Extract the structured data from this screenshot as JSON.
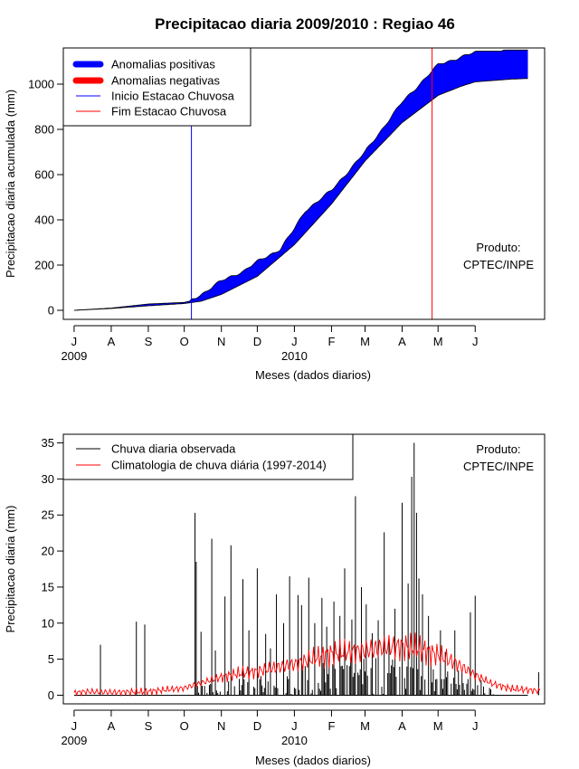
{
  "title": "Precipitacao diaria 2009/2010 : Regiao 46",
  "colors": {
    "positive": "#0000ff",
    "negative": "#ff0000",
    "season_start": "#0000ff",
    "season_end": "#ff0000",
    "observed": "#000000",
    "climatology": "#ff0000"
  },
  "chart_data": [
    {
      "type": "area",
      "name": "accumulated",
      "ylabel": "Precipitacao diaria acumulada (mm)",
      "xlabel": "Meses (dados diarios)",
      "xlim": [
        "2009-06-22",
        "2010-07-29"
      ],
      "ylim": [
        -40,
        1160
      ],
      "yticks": [
        0,
        200,
        400,
        600,
        800,
        1000
      ],
      "month_ticks": [
        {
          "date": "2009-07-01",
          "label": "J"
        },
        {
          "date": "2009-08-01",
          "label": "A"
        },
        {
          "date": "2009-09-01",
          "label": "S"
        },
        {
          "date": "2009-10-01",
          "label": "O"
        },
        {
          "date": "2009-11-01",
          "label": "N"
        },
        {
          "date": "2009-12-01",
          "label": "D"
        },
        {
          "date": "2010-01-01",
          "label": "J"
        },
        {
          "date": "2010-02-01",
          "label": "F"
        },
        {
          "date": "2010-03-01",
          "label": "M"
        },
        {
          "date": "2010-04-01",
          "label": "A"
        },
        {
          "date": "2010-05-01",
          "label": "M"
        },
        {
          "date": "2010-06-01",
          "label": "J"
        }
      ],
      "year_labels": [
        {
          "date": "2009-07-01",
          "label": "2009"
        },
        {
          "date": "2010-01-01",
          "label": "2010"
        }
      ],
      "observed_cumulative": {
        "x": [
          "2009-07-01",
          "2009-08-01",
          "2009-09-01",
          "2009-10-01",
          "2009-10-05",
          "2009-10-15",
          "2009-11-01",
          "2009-11-20",
          "2009-12-01",
          "2009-12-20",
          "2010-01-01",
          "2010-01-10",
          "2010-02-01",
          "2010-03-01",
          "2010-04-01",
          "2010-05-01",
          "2010-05-20",
          "2010-06-01",
          "2010-07-01",
          "2010-07-15"
        ],
        "y": [
          0,
          10,
          28,
          35,
          40,
          70,
          130,
          175,
          215,
          270,
          360,
          440,
          530,
          700,
          920,
          1085,
          1120,
          1140,
          1145,
          1145
        ]
      },
      "climatology_cumulative": {
        "x": [
          "2009-07-01",
          "2009-08-01",
          "2009-09-01",
          "2009-10-01",
          "2009-10-15",
          "2009-11-01",
          "2009-12-01",
          "2010-01-01",
          "2010-02-01",
          "2010-03-01",
          "2010-04-01",
          "2010-05-01",
          "2010-05-20",
          "2010-06-01",
          "2010-07-01",
          "2010-07-15"
        ],
        "y": [
          0,
          8,
          20,
          30,
          40,
          70,
          150,
          290,
          470,
          660,
          830,
          950,
          990,
          1010,
          1022,
          1025
        ]
      },
      "season_start": "2009-10-07",
      "season_end": "2010-04-26",
      "legend": {
        "placement": "top-left",
        "items": [
          "Anomalias positivas",
          "Anomalias negativas",
          "Inicio Estacao Chuvosa",
          "Fim Estacao Chuvosa"
        ]
      },
      "annotation": [
        "Produto:",
        "CPTEC/INPE"
      ]
    },
    {
      "type": "line",
      "name": "daily",
      "ylabel": "Precipitacao diaria (mm)",
      "xlabel": "Meses (dados diarios)",
      "xlim": [
        "2009-06-22",
        "2010-07-29"
      ],
      "ylim": [
        -1.2,
        36.2
      ],
      "yticks": [
        0,
        5,
        10,
        15,
        20,
        25,
        30,
        35
      ],
      "month_ticks": [
        {
          "date": "2009-07-01",
          "label": "J"
        },
        {
          "date": "2009-08-01",
          "label": "A"
        },
        {
          "date": "2009-09-01",
          "label": "S"
        },
        {
          "date": "2009-10-01",
          "label": "O"
        },
        {
          "date": "2009-11-01",
          "label": "N"
        },
        {
          "date": "2009-12-01",
          "label": "D"
        },
        {
          "date": "2010-01-01",
          "label": "J"
        },
        {
          "date": "2010-02-01",
          "label": "F"
        },
        {
          "date": "2010-03-01",
          "label": "M"
        },
        {
          "date": "2010-04-01",
          "label": "A"
        },
        {
          "date": "2010-05-01",
          "label": "M"
        },
        {
          "date": "2010-06-01",
          "label": "J"
        }
      ],
      "year_labels": [
        {
          "date": "2009-07-01",
          "label": "2009"
        },
        {
          "date": "2010-01-01",
          "label": "2010"
        }
      ],
      "observed_peaks": [
        {
          "date": "2009-07-23",
          "value": 7.0
        },
        {
          "date": "2009-08-22",
          "value": 10.2
        },
        {
          "date": "2009-08-29",
          "value": 9.8
        },
        {
          "date": "2009-10-10",
          "value": 25.3
        },
        {
          "date": "2009-10-11",
          "value": 18.5
        },
        {
          "date": "2009-10-15",
          "value": 8.8
        },
        {
          "date": "2009-10-24",
          "value": 21.7
        },
        {
          "date": "2009-10-27",
          "value": 6.2
        },
        {
          "date": "2009-11-04",
          "value": 13.7
        },
        {
          "date": "2009-11-09",
          "value": 20.8
        },
        {
          "date": "2009-11-19",
          "value": 16.1
        },
        {
          "date": "2009-11-24",
          "value": 9.0
        },
        {
          "date": "2009-12-01",
          "value": 17.6
        },
        {
          "date": "2009-12-08",
          "value": 8.5
        },
        {
          "date": "2009-12-12",
          "value": 6.5
        },
        {
          "date": "2009-12-17",
          "value": 14.0
        },
        {
          "date": "2009-12-23",
          "value": 10.0
        },
        {
          "date": "2009-12-28",
          "value": 16.5
        },
        {
          "date": "2010-01-04",
          "value": 13.9
        },
        {
          "date": "2010-01-07",
          "value": 12.5
        },
        {
          "date": "2010-01-13",
          "value": 16.3
        },
        {
          "date": "2010-01-18",
          "value": 10.0
        },
        {
          "date": "2010-01-24",
          "value": 13.5
        },
        {
          "date": "2010-01-28",
          "value": 9.5
        },
        {
          "date": "2010-02-03",
          "value": 13.0
        },
        {
          "date": "2010-02-08",
          "value": 11.0
        },
        {
          "date": "2010-02-12",
          "value": 17.6
        },
        {
          "date": "2010-02-18",
          "value": 10.5
        },
        {
          "date": "2010-02-21",
          "value": 27.6
        },
        {
          "date": "2010-02-26",
          "value": 15.0
        },
        {
          "date": "2010-03-02",
          "value": 12.6
        },
        {
          "date": "2010-03-07",
          "value": 8.6
        },
        {
          "date": "2010-03-12",
          "value": 10.4
        },
        {
          "date": "2010-03-17",
          "value": 22.6
        },
        {
          "date": "2010-03-21",
          "value": 8.0
        },
        {
          "date": "2010-03-26",
          "value": 12.0
        },
        {
          "date": "2010-04-01",
          "value": 26.7
        },
        {
          "date": "2010-04-06",
          "value": 15.5
        },
        {
          "date": "2010-04-09",
          "value": 30.3
        },
        {
          "date": "2010-04-11",
          "value": 35.0
        },
        {
          "date": "2010-04-13",
          "value": 25.3
        },
        {
          "date": "2010-04-15",
          "value": 16.2
        },
        {
          "date": "2010-04-18",
          "value": 14.0
        },
        {
          "date": "2010-04-23",
          "value": 11.0
        },
        {
          "date": "2010-05-03",
          "value": 9.0
        },
        {
          "date": "2010-05-07",
          "value": 6.0
        },
        {
          "date": "2010-05-15",
          "value": 9.0
        },
        {
          "date": "2010-05-28",
          "value": 11.5
        },
        {
          "date": "2010-06-01",
          "value": 13.8
        },
        {
          "date": "2010-07-24",
          "value": 3.2
        }
      ],
      "climatology": {
        "x": [
          "2009-07-01",
          "2009-07-10",
          "2009-08-01",
          "2009-09-01",
          "2009-10-01",
          "2009-10-15",
          "2009-11-01",
          "2009-11-15",
          "2009-12-01",
          "2009-12-15",
          "2010-01-01",
          "2010-01-15",
          "2010-02-01",
          "2010-02-15",
          "2010-03-01",
          "2010-03-15",
          "2010-04-01",
          "2010-04-15",
          "2010-05-01",
          "2010-05-15",
          "2010-06-01",
          "2010-06-15",
          "2010-07-01",
          "2010-07-25"
        ],
        "y": [
          0.3,
          0.5,
          0.4,
          0.5,
          1.0,
          1.7,
          2.5,
          3.0,
          3.3,
          3.8,
          4.3,
          5.0,
          5.8,
          6.0,
          6.2,
          6.6,
          6.8,
          6.4,
          5.6,
          4.5,
          2.8,
          1.6,
          0.9,
          0.6
        ]
      },
      "legend": {
        "placement": "top-left",
        "items": [
          "Chuva diaria observada",
          "Climatologia de chuva diária (1997-2014)"
        ]
      },
      "annotation": [
        "Produto:",
        "CPTEC/INPE"
      ]
    }
  ]
}
